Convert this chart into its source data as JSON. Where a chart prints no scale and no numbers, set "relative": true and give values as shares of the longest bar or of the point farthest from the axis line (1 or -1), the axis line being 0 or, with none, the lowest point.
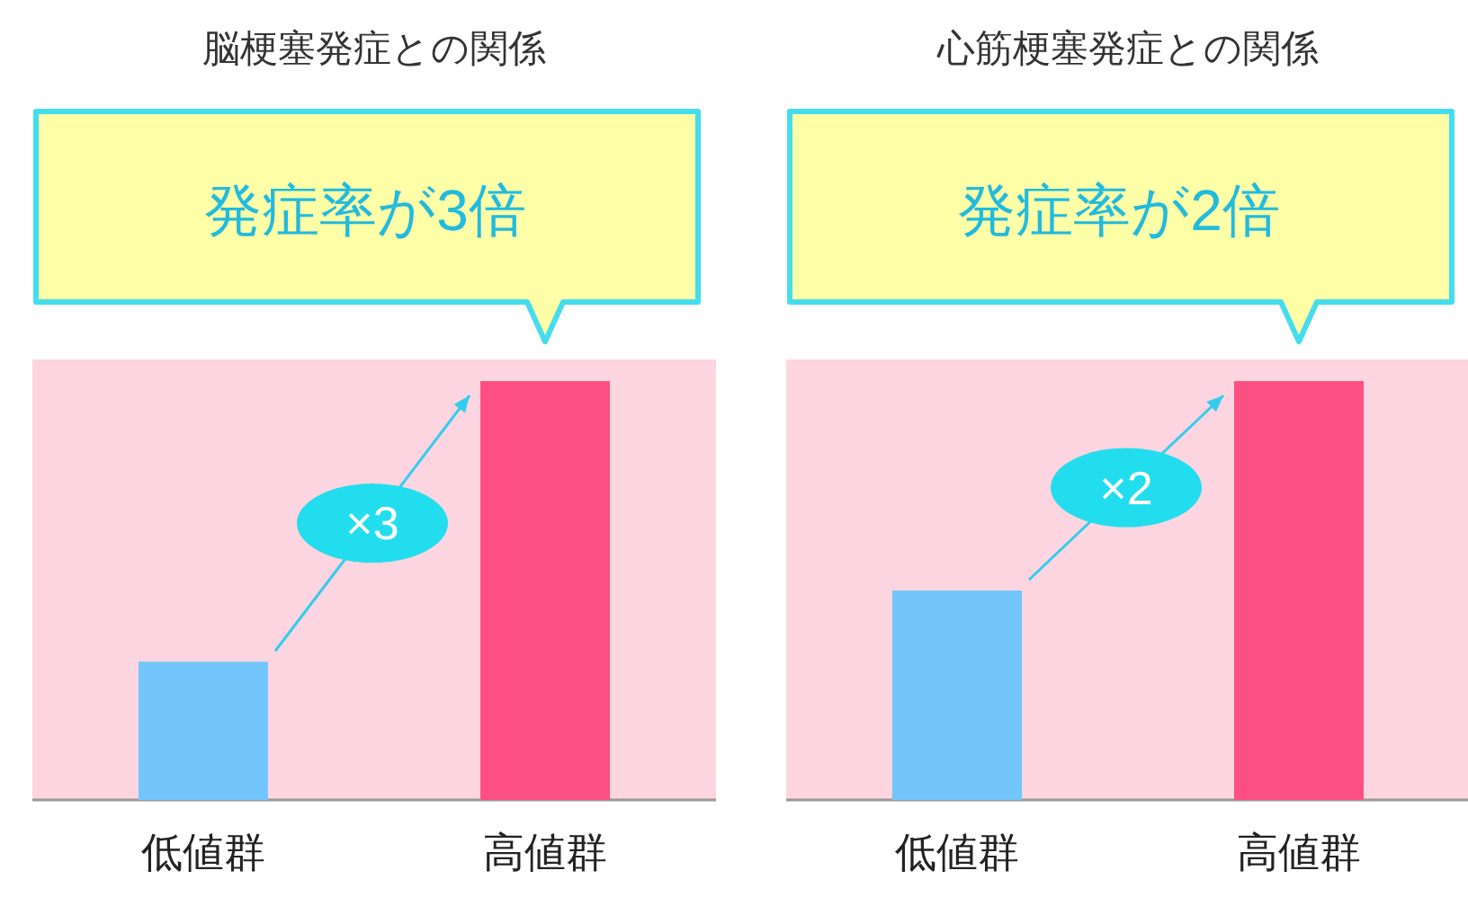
{
  "chart_data": [
    {
      "type": "bar",
      "relative": true,
      "title": "脳梗塞発症との関係",
      "categories": [
        "低値群",
        "高値群"
      ],
      "values": [
        0.33,
        1
      ],
      "colors": [
        "#73c6fb",
        "#fd4f82"
      ],
      "annotations": [
        "発症率が3倍",
        "×3"
      ]
    },
    {
      "type": "bar",
      "relative": true,
      "title": "心筋梗塞発症との関係",
      "categories": [
        "低値群",
        "高値群"
      ],
      "values": [
        0.5,
        1
      ],
      "colors": [
        "#73c6fb",
        "#fd4f82"
      ],
      "annotations": [
        "発症率が2倍",
        "×2"
      ]
    }
  ]
}
